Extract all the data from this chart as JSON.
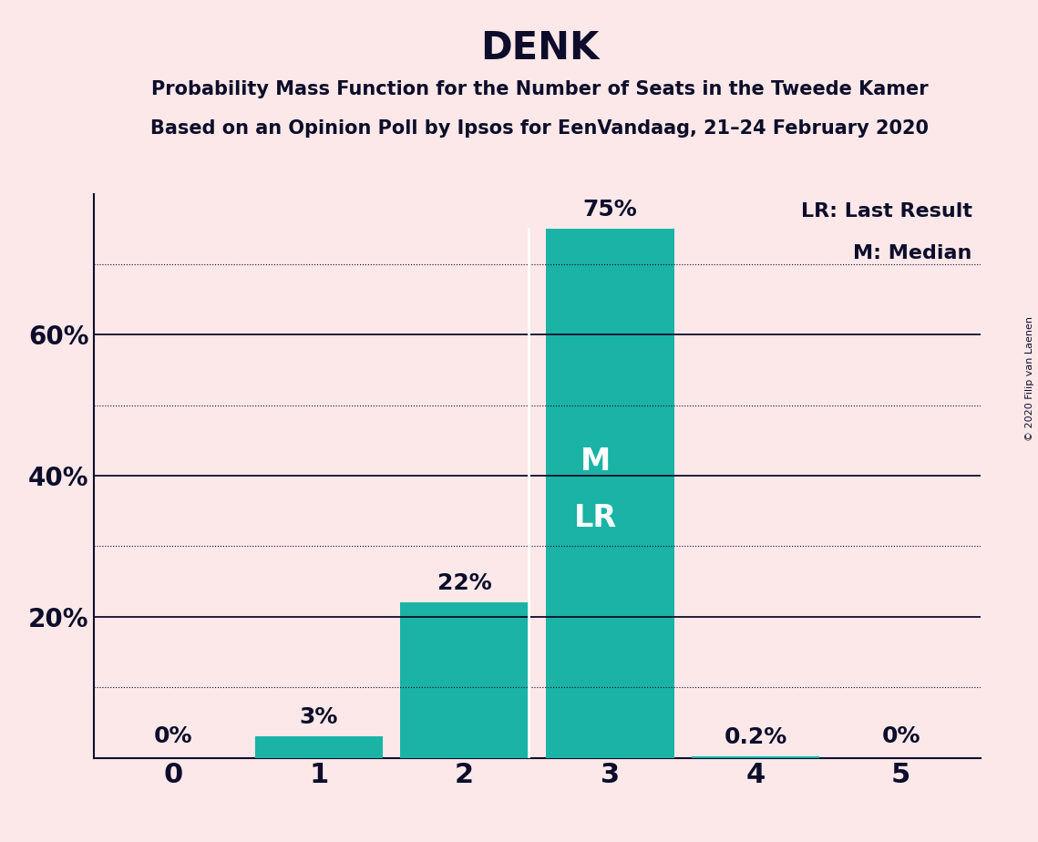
{
  "title": "DENK",
  "subtitle1": "Probability Mass Function for the Number of Seats in the Tweede Kamer",
  "subtitle2": "Based on an Opinion Poll by Ipsos for EenVandaag, 21–24 February 2020",
  "copyright": "© 2020 Filip van Laenen",
  "categories": [
    0,
    1,
    2,
    3,
    4,
    5
  ],
  "values": [
    0.0,
    3.0,
    22.0,
    75.0,
    0.2,
    0.0
  ],
  "bar_labels": [
    "0%",
    "3%",
    "22%",
    "75%",
    "0.2%",
    "0%"
  ],
  "bar_color": "#1ab3a6",
  "background_color": "#fce8e8",
  "text_color": "#0d0d2b",
  "bar_label_color_outside": "#0d0d2b",
  "bar_label_color_inside": "#ffffff",
  "median_label": "M",
  "lr_label": "LR",
  "median_seat": 3,
  "lr_seat": 3,
  "legend_lr": "LR: Last Result",
  "legend_m": "M: Median",
  "solid_gridlines": [
    20,
    40,
    60
  ],
  "dotted_gridlines": [
    10,
    30,
    50,
    70
  ],
  "major_yticks": [
    20,
    40,
    60
  ],
  "minor_yticks": [
    10,
    30,
    50,
    70
  ],
  "ylim": [
    0,
    80
  ],
  "xlim": [
    -0.55,
    5.55
  ],
  "grid_color": "#0d0d2b",
  "title_fontsize": 30,
  "subtitle_fontsize": 15,
  "bar_label_fontsize": 18,
  "major_ytick_fontsize": 20,
  "minor_ytick_fontsize": 0,
  "legend_fontsize": 16,
  "xtick_fontsize": 22,
  "ml_label_fontsize": 24,
  "copyright_fontsize": 8
}
